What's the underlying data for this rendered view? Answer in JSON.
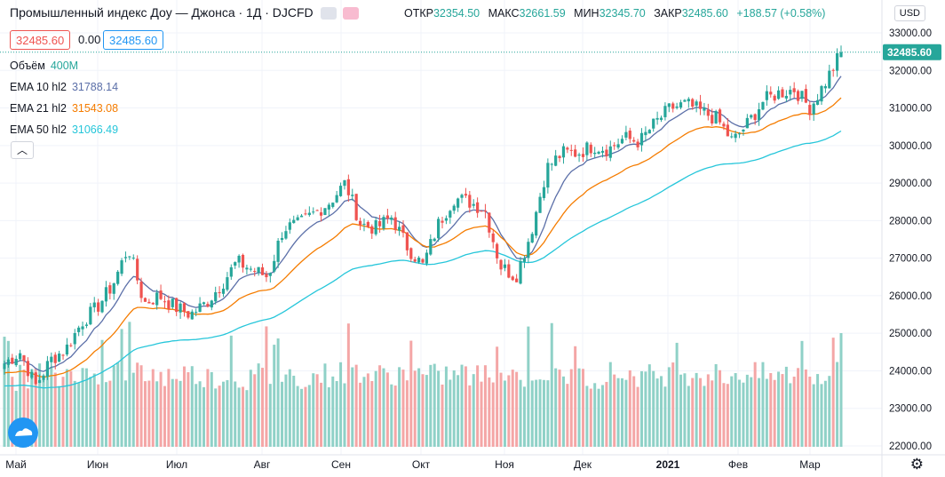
{
  "header": {
    "title": "Промышленный индекс Доу — Джонса · 1Д · DJCFD",
    "open_label": "ОТКР",
    "open_value": "32354.50",
    "high_label": "МАКС",
    "high_value": "32661.59",
    "low_label": "МИН",
    "low_value": "32345.70",
    "close_label": "ЗАКР",
    "close_value": "32485.60",
    "change": "+188.57 (+0.58%)",
    "bid": "32485.60",
    "spread": "0.00",
    "ask": "32485.60"
  },
  "indicators": {
    "volume_label": "Объём",
    "volume_value": "400M",
    "ema10_label": "EMA 10 hl2",
    "ema10_value": "31788.14",
    "ema21_label": "EMA 21 hl2",
    "ema21_value": "31543.08",
    "ema50_label": "EMA 50 hl2",
    "ema50_value": "31066.49",
    "collapse_icon": "chevron-up-icon"
  },
  "price_axis": {
    "currency": "USD",
    "last_price": "32485.60"
  },
  "time_axis": {
    "labels": [
      "Май",
      "Июн",
      "Июл",
      "Авг",
      "Сен",
      "Окт",
      "Ноя",
      "Дек",
      "2021",
      "Фев",
      "Мар"
    ]
  },
  "colors": {
    "up": "#26a69a",
    "down": "#ef5350",
    "ema10": "#5b6fa8",
    "ema21": "#f57c00",
    "ema50": "#26c6da",
    "vol_up": "#8fd1c7",
    "vol_down": "#f4a6a6"
  },
  "chart_data": {
    "type": "candlestick",
    "title": "Промышленный индекс Доу — Джонса · 1Д · DJCFD",
    "ylim": [
      22000,
      33300
    ],
    "yticks": [
      "22000.00",
      "23000.00",
      "24000.00",
      "25000.00",
      "26000.00",
      "27000.00",
      "28000.00",
      "29000.00",
      "30000.00",
      "31000.00",
      "32000.00",
      "33000.00"
    ],
    "weekly_close": [
      24200,
      24500,
      23600,
      24300,
      24600,
      25300,
      25700,
      26300,
      27300,
      25800,
      26000,
      25700,
      25500,
      25800,
      26300,
      26900,
      26700,
      26500,
      27800,
      27900,
      28200,
      28500,
      29000,
      27900,
      27800,
      28100,
      27300,
      26800,
      27900,
      28600,
      28500,
      28300,
      26800,
      26500,
      27700,
      29400,
      29800,
      29800,
      30000,
      29900,
      30200,
      30100,
      30600,
      31000,
      31100,
      30900,
      30700,
      30100,
      30600,
      31200,
      31400,
      31500,
      31000,
      31700,
      32486
    ],
    "weekly_volume_m": [
      230,
      240,
      250,
      230,
      260,
      240,
      250,
      260,
      255,
      245,
      240,
      250,
      245,
      235,
      240,
      230,
      245,
      235,
      240,
      235,
      245,
      250,
      260,
      245,
      240,
      250,
      245,
      240,
      245,
      250,
      240,
      245,
      250,
      240,
      255,
      245,
      240,
      235,
      240,
      250,
      245,
      240,
      245,
      260,
      250,
      245,
      240,
      250,
      245,
      240,
      245,
      250,
      245,
      250,
      400
    ]
  }
}
